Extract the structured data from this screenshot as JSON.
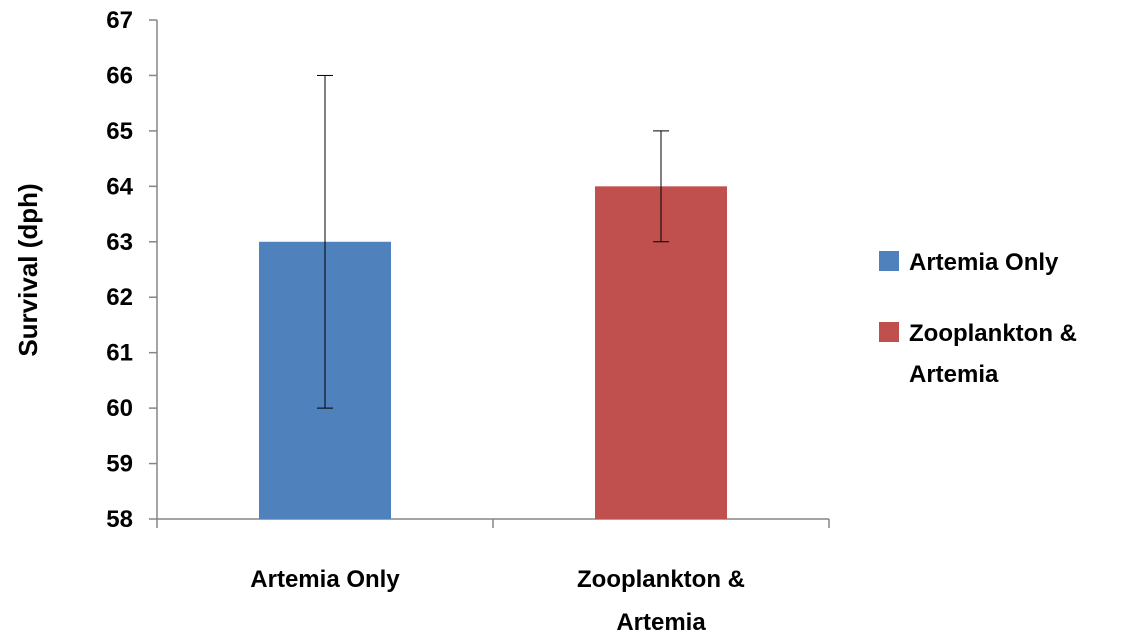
{
  "chart_data": {
    "type": "bar",
    "categories": [
      "Artemia Only",
      "Zooplankton & Artemia"
    ],
    "category_label_lines": [
      [
        "Artemia Only"
      ],
      [
        "Zooplankton &",
        "Artemia"
      ]
    ],
    "series": [
      {
        "name": "Artemia Only",
        "color": "#4F81BD",
        "category": "Artemia Only",
        "value": 63,
        "error_low": 60,
        "error_high": 66
      },
      {
        "name": "Zooplankton & Artemia",
        "color": "#C0504D",
        "category": "Zooplankton & Artemia",
        "value": 64,
        "error_low": 63,
        "error_high": 65
      }
    ],
    "legend_label_lines": [
      [
        "Artemia Only"
      ],
      [
        "Zooplankton &",
        "Artemia"
      ]
    ],
    "legend_position": "right",
    "ylabel": "Survival (dph)",
    "xlabel": "",
    "title": "",
    "ylim": [
      58,
      67
    ],
    "y_ticks": [
      58,
      59,
      60,
      61,
      62,
      63,
      64,
      65,
      66,
      67
    ],
    "grid": false
  }
}
